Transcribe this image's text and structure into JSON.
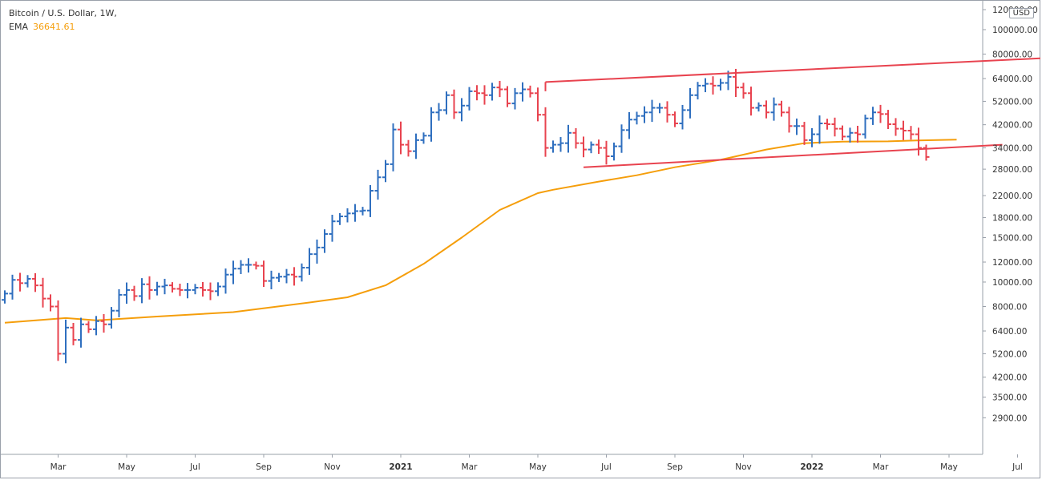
{
  "legend": {
    "title": "Bitcoin / U.S. Dollar, 1W,",
    "ema_label": "EMA",
    "ema_value": "36641.61"
  },
  "currency": "USD",
  "colors": {
    "up": "#2f6fbf",
    "down": "#e8434f",
    "ema": "#f59e0b",
    "trendline": "#e8434f",
    "axis": "#9aa0aa",
    "text": "#333333"
  },
  "chart_data": {
    "type": "ohlc",
    "scale": "log",
    "ylim": [
      2500,
      130000
    ],
    "y_ticks": [
      120000,
      100000,
      80000,
      64000,
      52000,
      42000,
      34000,
      28000,
      22000,
      18000,
      15000,
      12000,
      10000,
      8000,
      6400,
      5200,
      4200,
      3500,
      2900
    ],
    "y_tick_labels": [
      "120000.00",
      "100000.00",
      "80000.00",
      "64000.00",
      "52000.00",
      "42000.00",
      "34000.00",
      "28000.00",
      "22000.00",
      "18000.00",
      "15000.00",
      "12000.00",
      "10000.00",
      "8000.00",
      "6400.00",
      "5200.00",
      "4200.00",
      "3500.00",
      "2900.00"
    ],
    "x_labels": [
      {
        "label": "Mar",
        "week": 7,
        "bold": false
      },
      {
        "label": "May",
        "week": 16,
        "bold": false
      },
      {
        "label": "Jul",
        "week": 25,
        "bold": false
      },
      {
        "label": "Sep",
        "week": 34,
        "bold": false
      },
      {
        "label": "Nov",
        "week": 43,
        "bold": false
      },
      {
        "label": "2021",
        "week": 52,
        "bold": true
      },
      {
        "label": "Mar",
        "week": 61,
        "bold": false
      },
      {
        "label": "May",
        "week": 70,
        "bold": false
      },
      {
        "label": "Jul",
        "week": 79,
        "bold": false
      },
      {
        "label": "Sep",
        "week": 88,
        "bold": false
      },
      {
        "label": "Nov",
        "week": 97,
        "bold": false
      },
      {
        "label": "2022",
        "week": 106,
        "bold": true
      },
      {
        "label": "Mar",
        "week": 115,
        "bold": false
      },
      {
        "label": "May",
        "week": 124,
        "bold": false
      },
      {
        "label": "Jul",
        "week": 133,
        "bold": false
      }
    ],
    "close": [
      9000,
      10200,
      9900,
      10300,
      9700,
      8600,
      8000,
      5200,
      6600,
      5900,
      6800,
      6500,
      7000,
      6800,
      7700,
      8900,
      9300,
      8800,
      9800,
      9300,
      9600,
      9700,
      9400,
      9300,
      9300,
      9500,
      9300,
      9200,
      9600,
      10700,
      11300,
      11700,
      11700,
      11600,
      10100,
      10400,
      10500,
      10700,
      10500,
      11400,
      12900,
      13700,
      15500,
      17400,
      18200,
      18700,
      19100,
      19200,
      23000,
      26000,
      29300,
      40200,
      35000,
      33000,
      36500,
      38000,
      47000,
      48000,
      55000,
      47000,
      50000,
      57000,
      56000,
      55000,
      59000,
      58000,
      51000,
      56000,
      58000,
      56000,
      46000,
      34000,
      35000,
      35500,
      39000,
      35500,
      33500,
      35000,
      34000,
      31500,
      34500,
      40000,
      44000,
      45500,
      47000,
      49000,
      49000,
      46000,
      42500,
      48000,
      55000,
      60000,
      61000,
      60000,
      61500,
      65000,
      59000,
      56000,
      49000,
      50000,
      47000,
      50500,
      47000,
      41500,
      41500,
      36500,
      38500,
      42500,
      42200,
      40500,
      37700,
      39000,
      38500,
      44500,
      47000,
      46300,
      42200,
      40500,
      39800,
      38500,
      34000,
      31300
    ],
    "open_first": 8500,
    "ema": [
      [
        0,
        6900
      ],
      [
        8,
        7200
      ],
      [
        12,
        7050
      ],
      [
        20,
        7300
      ],
      [
        30,
        7600
      ],
      [
        40,
        8300
      ],
      [
        45,
        8700
      ],
      [
        50,
        9700
      ],
      [
        55,
        11800
      ],
      [
        60,
        15000
      ],
      [
        65,
        19300
      ],
      [
        70,
        22500
      ],
      [
        72,
        23200
      ],
      [
        78,
        25000
      ],
      [
        83,
        26500
      ],
      [
        88,
        28500
      ],
      [
        94,
        30500
      ],
      [
        100,
        33500
      ],
      [
        105,
        35500
      ],
      [
        110,
        36000
      ],
      [
        116,
        36100
      ],
      [
        120,
        36400
      ],
      [
        125,
        36642
      ]
    ],
    "trendlines": [
      {
        "name": "upper",
        "x": [
          71,
          136
        ],
        "y": [
          62000,
          77000
        ]
      },
      {
        "name": "lower",
        "x": [
          76,
          131
        ],
        "y": [
          28500,
          35000
        ]
      },
      {
        "name": "start-vertical",
        "x": [
          71,
          71
        ],
        "y": [
          62000,
          57000
        ]
      }
    ]
  }
}
